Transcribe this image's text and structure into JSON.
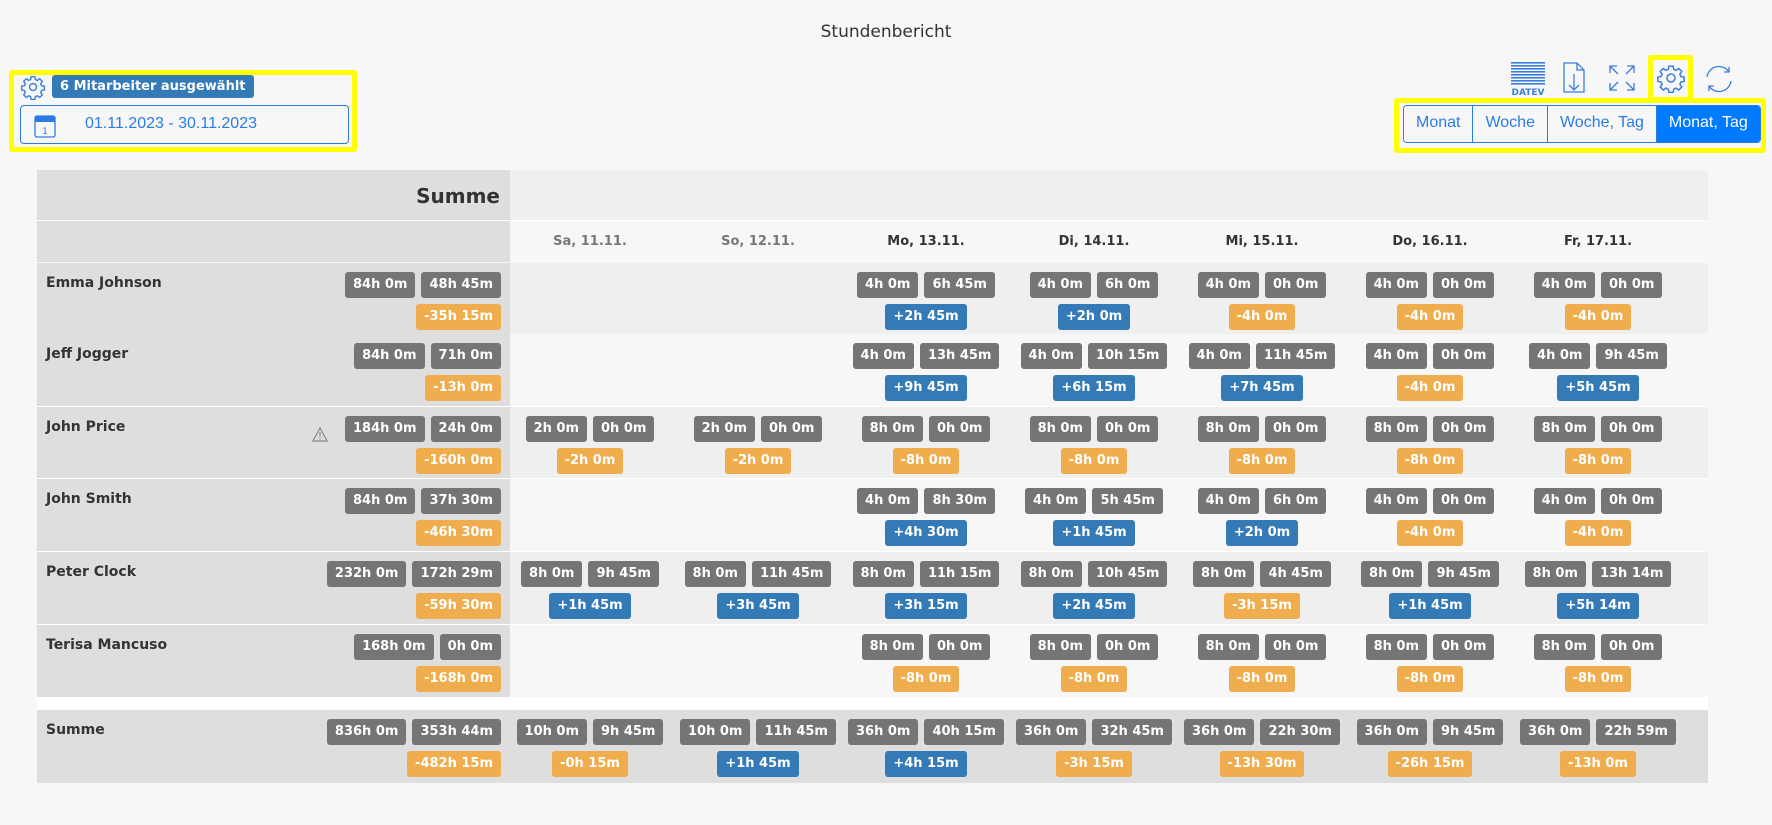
{
  "header": {
    "title": "Stundenbericht"
  },
  "filter": {
    "selected_badge": "6 Mitarbeiter ausgewählt",
    "date_range": "01.11.2023 - 30.11.2023"
  },
  "toolbar": {
    "datev_logo": "DATEV",
    "icons": [
      "datev-export-icon",
      "download-icon",
      "fullscreen-icon",
      "settings-icon",
      "refresh-icon"
    ]
  },
  "view_modes": [
    {
      "label": "Monat",
      "active": false
    },
    {
      "label": "Woche",
      "active": false
    },
    {
      "label": "Woche, Tag",
      "active": false
    },
    {
      "label": "Monat, Tag",
      "active": true
    }
  ],
  "colors": {
    "neutral": "#757575",
    "negative": "#f0ad4e",
    "positive": "#337ab7",
    "accent": "#2c7be5"
  },
  "table": {
    "sum_header": "Summe",
    "days": [
      {
        "label": "Sa, 11.11.",
        "weekend": true
      },
      {
        "label": "So, 12.11.",
        "weekend": true
      },
      {
        "label": "Mo, 13.11.",
        "weekend": false
      },
      {
        "label": "Di, 14.11.",
        "weekend": false
      },
      {
        "label": "Mi, 15.11.",
        "weekend": false
      },
      {
        "label": "Do, 16.11.",
        "weekend": false
      },
      {
        "label": "Fr, 17.11.",
        "weekend": false
      }
    ],
    "rows": [
      {
        "name": "Emma Johnson",
        "warning": false,
        "total": [
          "84h 0m",
          "48h 45m",
          "-35h 15m"
        ],
        "days": [
          null,
          null,
          [
            "4h 0m",
            "6h 45m",
            "+2h 45m"
          ],
          [
            "4h 0m",
            "6h 0m",
            "+2h 0m"
          ],
          [
            "4h 0m",
            "0h 0m",
            "-4h 0m"
          ],
          [
            "4h 0m",
            "0h 0m",
            "-4h 0m"
          ],
          [
            "4h 0m",
            "0h 0m",
            "-4h 0m"
          ]
        ]
      },
      {
        "name": "Jeff Jogger",
        "warning": false,
        "total": [
          "84h 0m",
          "71h 0m",
          "-13h 0m"
        ],
        "days": [
          null,
          null,
          [
            "4h 0m",
            "13h 45m",
            "+9h 45m"
          ],
          [
            "4h 0m",
            "10h 15m",
            "+6h 15m"
          ],
          [
            "4h 0m",
            "11h 45m",
            "+7h 45m"
          ],
          [
            "4h 0m",
            "0h 0m",
            "-4h 0m"
          ],
          [
            "4h 0m",
            "9h 45m",
            "+5h 45m"
          ]
        ]
      },
      {
        "name": "John Price",
        "warning": true,
        "total": [
          "184h 0m",
          "24h 0m",
          "-160h 0m"
        ],
        "days": [
          [
            "2h 0m",
            "0h 0m",
            "-2h 0m"
          ],
          [
            "2h 0m",
            "0h 0m",
            "-2h 0m"
          ],
          [
            "8h 0m",
            "0h 0m",
            "-8h 0m"
          ],
          [
            "8h 0m",
            "0h 0m",
            "-8h 0m"
          ],
          [
            "8h 0m",
            "0h 0m",
            "-8h 0m"
          ],
          [
            "8h 0m",
            "0h 0m",
            "-8h 0m"
          ],
          [
            "8h 0m",
            "0h 0m",
            "-8h 0m"
          ]
        ]
      },
      {
        "name": "John Smith",
        "warning": false,
        "total": [
          "84h 0m",
          "37h 30m",
          "-46h 30m"
        ],
        "days": [
          null,
          null,
          [
            "4h 0m",
            "8h 30m",
            "+4h 30m"
          ],
          [
            "4h 0m",
            "5h 45m",
            "+1h 45m"
          ],
          [
            "4h 0m",
            "6h 0m",
            "+2h 0m"
          ],
          [
            "4h 0m",
            "0h 0m",
            "-4h 0m"
          ],
          [
            "4h 0m",
            "0h 0m",
            "-4h 0m"
          ]
        ]
      },
      {
        "name": "Peter Clock",
        "warning": false,
        "total": [
          "232h 0m",
          "172h 29m",
          "-59h 30m"
        ],
        "days": [
          [
            "8h 0m",
            "9h 45m",
            "+1h 45m"
          ],
          [
            "8h 0m",
            "11h 45m",
            "+3h 45m"
          ],
          [
            "8h 0m",
            "11h 15m",
            "+3h 15m"
          ],
          [
            "8h 0m",
            "10h 45m",
            "+2h 45m"
          ],
          [
            "8h 0m",
            "4h 45m",
            "-3h 15m"
          ],
          [
            "8h 0m",
            "9h 45m",
            "+1h 45m"
          ],
          [
            "8h 0m",
            "13h 14m",
            "+5h 14m"
          ]
        ]
      },
      {
        "name": "Terisa Mancuso",
        "warning": false,
        "total": [
          "168h 0m",
          "0h 0m",
          "-168h 0m"
        ],
        "days": [
          null,
          null,
          [
            "8h 0m",
            "0h 0m",
            "-8h 0m"
          ],
          [
            "8h 0m",
            "0h 0m",
            "-8h 0m"
          ],
          [
            "8h 0m",
            "0h 0m",
            "-8h 0m"
          ],
          [
            "8h 0m",
            "0h 0m",
            "-8h 0m"
          ],
          [
            "8h 0m",
            "0h 0m",
            "-8h 0m"
          ]
        ]
      }
    ],
    "summary": {
      "name": "Summe",
      "total": [
        "836h 0m",
        "353h 44m",
        "-482h 15m"
      ],
      "days": [
        [
          "10h 0m",
          "9h 45m",
          "-0h 15m"
        ],
        [
          "10h 0m",
          "11h 45m",
          "+1h 45m"
        ],
        [
          "36h 0m",
          "40h 15m",
          "+4h 15m"
        ],
        [
          "36h 0m",
          "32h 45m",
          "-3h 15m"
        ],
        [
          "36h 0m",
          "22h 30m",
          "-13h 30m"
        ],
        [
          "36h 0m",
          "9h 45m",
          "-26h 15m"
        ],
        [
          "36h 0m",
          "22h 59m",
          "-13h 0m"
        ]
      ]
    }
  }
}
